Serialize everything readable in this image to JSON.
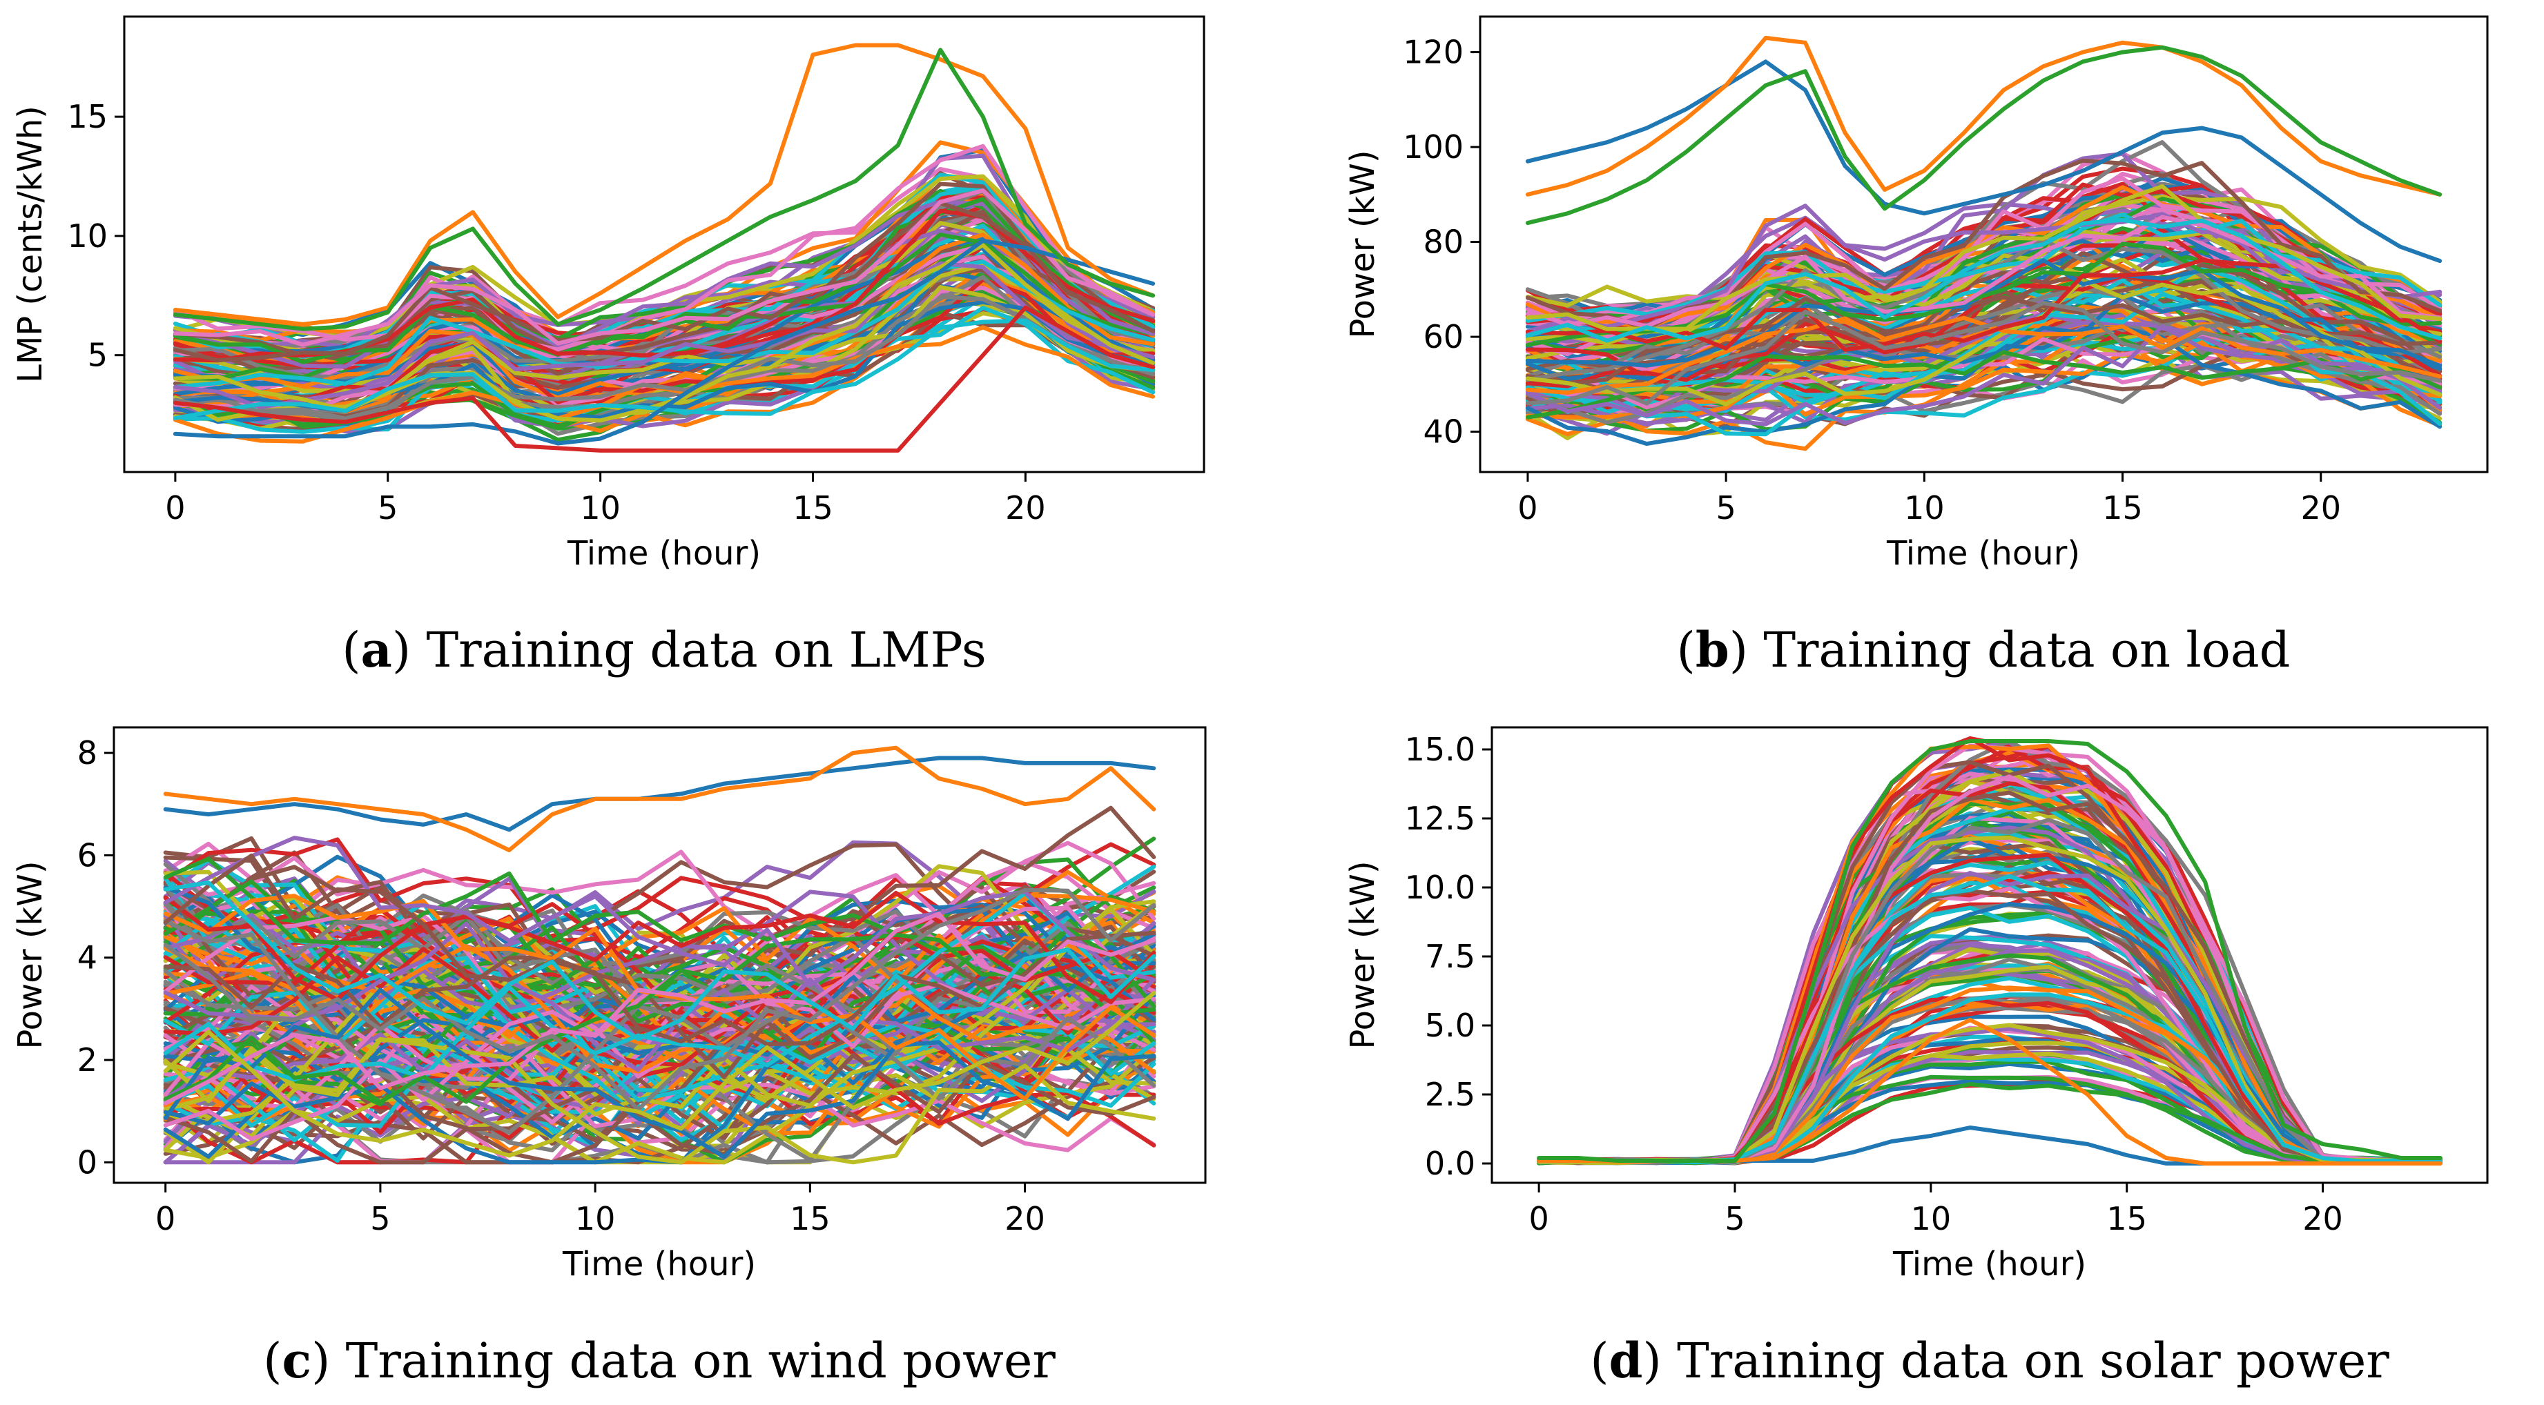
{
  "chart_data": [
    {
      "type": "line",
      "xlabel": "Time (hour)",
      "ylabel": "LMP (cents/kWh)",
      "xlim": [
        -1.2,
        24.2
      ],
      "ylim": [
        0.1,
        19.2
      ],
      "xticks": [
        0,
        5,
        10,
        15,
        20
      ],
      "yticks": [
        5,
        10,
        15
      ],
      "ytick_labels": [
        "5",
        "10",
        "15"
      ],
      "caption": {
        "letter": "a",
        "text": "Training data on LMPs"
      },
      "x": [
        0,
        1,
        2,
        3,
        4,
        5,
        6,
        7,
        8,
        9,
        10,
        11,
        12,
        13,
        14,
        15,
        16,
        17,
        18,
        19,
        20,
        21,
        22,
        23
      ],
      "n_series": 120,
      "series": [
        {
          "values": [
            1.7,
            1.6,
            1.6,
            1.6,
            1.6,
            2.0,
            2.0,
            2.1,
            1.8,
            1.3,
            1.5,
            2.2,
            3.4,
            4.5,
            5.5,
            6.2,
            6.9,
            7.4,
            8.5,
            9.8,
            9.5,
            9.0,
            8.5,
            8.0
          ]
        },
        {
          "values": [
            6.9,
            6.7,
            6.5,
            6.3,
            6.5,
            7.0,
            9.8,
            11.0,
            8.5,
            6.6,
            7.6,
            8.7,
            9.8,
            10.7,
            12.2,
            17.6,
            18.0,
            18.0,
            17.4,
            16.7,
            14.5,
            9.5,
            8.2,
            7.5
          ]
        },
        {
          "values": [
            6.7,
            6.5,
            6.3,
            6.1,
            6.2,
            6.8,
            9.5,
            10.3,
            8.0,
            6.3,
            6.9,
            7.8,
            8.8,
            9.8,
            10.8,
            11.5,
            12.3,
            13.8,
            17.8,
            15.0,
            10.5,
            8.8,
            8.0,
            7.5
          ]
        },
        {
          "values": [
            3.0,
            2.8,
            2.5,
            2.3,
            2.2,
            2.6,
            3.0,
            3.2,
            1.2,
            1.1,
            1.0,
            1.0,
            1.0,
            1.0,
            1.0,
            1.0,
            1.0,
            1.0,
            3.0,
            5.0,
            7.0,
            6.0,
            5.0,
            4.5
          ]
        }
      ],
      "family": {
        "base": [
          4.5,
          4.3,
          4.2,
          4.1,
          4.1,
          4.5,
          5.9,
          6.0,
          4.7,
          4.1,
          4.4,
          4.7,
          5.0,
          5.4,
          5.8,
          6.3,
          7.0,
          8.3,
          9.7,
          10.0,
          8.6,
          7.0,
          6.0,
          5.4
        ],
        "spread": [
          2.3,
          2.2,
          2.2,
          2.2,
          2.2,
          2.4,
          2.9,
          2.9,
          2.6,
          2.5,
          2.5,
          2.6,
          2.7,
          2.8,
          2.9,
          3.0,
          3.1,
          3.3,
          3.6,
          3.4,
          2.5,
          2.1,
          1.9,
          1.9
        ],
        "min": 1.0,
        "max": 15.2
      }
    },
    {
      "type": "line",
      "xlabel": "Time (hour)",
      "ylabel": "Power (kW)",
      "xlim": [
        -1.2,
        24.2
      ],
      "ylim": [
        31.5,
        127.5
      ],
      "xticks": [
        0,
        5,
        10,
        15,
        20
      ],
      "yticks": [
        40,
        60,
        80,
        100,
        120
      ],
      "ytick_labels": [
        "40",
        "60",
        "80",
        "100",
        "120"
      ],
      "caption": {
        "letter": "b",
        "text": "Training data on load"
      },
      "x": [
        0,
        1,
        2,
        3,
        4,
        5,
        6,
        7,
        8,
        9,
        10,
        11,
        12,
        13,
        14,
        15,
        16,
        17,
        18,
        19,
        20,
        21,
        22,
        23
      ],
      "n_series": 140,
      "series": [
        {
          "values": [
            97,
            99,
            101,
            104,
            108,
            113,
            118,
            112,
            96,
            88,
            86,
            88,
            90,
            92,
            95,
            99,
            103,
            104,
            102,
            96,
            90,
            84,
            79,
            76
          ]
        },
        {
          "values": [
            90,
            92,
            95,
            100,
            106,
            113,
            123,
            122,
            103,
            91,
            95,
            103,
            112,
            117,
            120,
            122,
            121,
            118,
            113,
            104,
            97,
            94,
            92,
            90
          ]
        },
        {
          "values": [
            84,
            86,
            89,
            93,
            99,
            106,
            113,
            116,
            98,
            87,
            93,
            101,
            108,
            114,
            118,
            120,
            121,
            119,
            115,
            108,
            101,
            97,
            93,
            90
          ]
        }
      ],
      "family": {
        "base": [
          55,
          54,
          54,
          54,
          55,
          57,
          62,
          63,
          61,
          60,
          62,
          65,
          68,
          70,
          72,
          73,
          73,
          72,
          70,
          67,
          64,
          61,
          58,
          55
        ],
        "spread": [
          14,
          14,
          14,
          14,
          15,
          16,
          21,
          22,
          17,
          15,
          16,
          18,
          19,
          20,
          21,
          22,
          22,
          21,
          20,
          18,
          16,
          15,
          14,
          14
        ],
        "min": 35,
        "max": 120
      }
    },
    {
      "type": "line",
      "xlabel": "Time (hour)",
      "ylabel": "Power (kW)",
      "xlim": [
        -1.2,
        24.2
      ],
      "ylim": [
        -0.4,
        8.5
      ],
      "xticks": [
        0,
        5,
        10,
        15,
        20
      ],
      "yticks": [
        0,
        2,
        4,
        6,
        8
      ],
      "ytick_labels": [
        "0",
        "2",
        "4",
        "6",
        "8"
      ],
      "caption": {
        "letter": "c",
        "text": "Training data on wind power"
      },
      "x": [
        0,
        1,
        2,
        3,
        4,
        5,
        6,
        7,
        8,
        9,
        10,
        11,
        12,
        13,
        14,
        15,
        16,
        17,
        18,
        19,
        20,
        21,
        22,
        23
      ],
      "n_series": 200,
      "series": [
        {
          "values": [
            6.9,
            6.8,
            6.9,
            7.0,
            6.9,
            6.7,
            6.6,
            6.8,
            6.5,
            7.0,
            7.1,
            7.1,
            7.2,
            7.4,
            7.5,
            7.6,
            7.7,
            7.8,
            7.9,
            7.9,
            7.8,
            7.8,
            7.8,
            7.7
          ]
        },
        {
          "values": [
            7.2,
            7.1,
            7.0,
            7.1,
            7.0,
            6.9,
            6.8,
            6.5,
            6.1,
            6.8,
            7.1,
            7.1,
            7.1,
            7.3,
            7.4,
            7.5,
            8.0,
            8.1,
            7.5,
            7.3,
            7.0,
            7.1,
            7.7,
            6.9
          ]
        }
      ],
      "family": {
        "base": [
          3.0,
          2.9,
          2.8,
          2.8,
          2.7,
          2.6,
          2.4,
          2.2,
          2.0,
          2.0,
          2.1,
          2.3,
          2.6,
          2.9,
          3.2,
          3.4,
          3.5,
          3.6,
          3.6,
          3.6,
          3.5,
          3.4,
          3.3,
          3.3
        ],
        "spread": [
          3.2,
          3.2,
          3.2,
          3.2,
          3.1,
          3.1,
          3.0,
          2.9,
          2.8,
          2.8,
          2.9,
          3.0,
          3.1,
          3.2,
          3.3,
          3.4,
          3.4,
          3.4,
          3.4,
          3.3,
          3.3,
          3.3,
          3.2,
          3.2
        ],
        "min": 0.0,
        "max": 7.6
      }
    },
    {
      "type": "line",
      "xlabel": "Time (hour)",
      "ylabel": "Power (kW)",
      "xlim": [
        -1.2,
        24.2
      ],
      "ylim": [
        -0.7,
        15.8
      ],
      "xticks": [
        0,
        5,
        10,
        15,
        20
      ],
      "yticks": [
        0,
        2.5,
        5,
        7.5,
        10,
        12.5,
        15
      ],
      "ytick_labels": [
        "0.0",
        "2.5",
        "5.0",
        "7.5",
        "10.0",
        "12.5",
        "15.0"
      ],
      "caption": {
        "letter": "d",
        "text": "Training data on solar power"
      },
      "x": [
        0,
        1,
        2,
        3,
        4,
        5,
        6,
        7,
        8,
        9,
        10,
        11,
        12,
        13,
        14,
        15,
        16,
        17,
        18,
        19,
        20,
        21,
        22,
        23
      ],
      "n_series": 160,
      "series": [
        {
          "values": [
            0.1,
            0.1,
            0.1,
            0.1,
            0.1,
            0.1,
            0.1,
            0.1,
            0.4,
            0.8,
            1.0,
            1.3,
            1.1,
            0.9,
            0.7,
            0.3,
            0.0,
            0.0,
            0.0,
            0.0,
            0.0,
            0.0,
            0.0,
            0.0
          ]
        },
        {
          "values": [
            0.1,
            0.1,
            0.1,
            0.1,
            0.1,
            0.1,
            0.2,
            1.0,
            2.0,
            3.3,
            4.5,
            5.2,
            4.5,
            3.5,
            2.5,
            1.0,
            0.2,
            0.0,
            0.0,
            0.0,
            0.0,
            0.0,
            0.0,
            0.0
          ]
        },
        {
          "values": [
            0.2,
            0.2,
            0.1,
            0.1,
            0.1,
            0.1,
            1.8,
            6.5,
            11.5,
            13.8,
            15.0,
            15.3,
            15.3,
            15.3,
            15.2,
            14.2,
            12.6,
            10.2,
            5.0,
            1.4,
            0.7,
            0.5,
            0.2,
            0.2
          ]
        }
      ],
      "family": {
        "shape": [
          0.01,
          0.01,
          0.01,
          0.01,
          0.01,
          0.01,
          0.08,
          0.38,
          0.7,
          0.87,
          0.96,
          1.0,
          1.0,
          0.99,
          0.95,
          0.86,
          0.72,
          0.52,
          0.26,
          0.06,
          0.03,
          0.02,
          0.01,
          0.01
        ],
        "peak_min": 2.0,
        "peak_max": 15.2
      }
    }
  ],
  "palette": [
    "#1f77b4",
    "#ff7f0e",
    "#2ca02c",
    "#d62728",
    "#9467bd",
    "#8c564b",
    "#e377c2",
    "#7f7f7f",
    "#bcbd22",
    "#17becf"
  ]
}
